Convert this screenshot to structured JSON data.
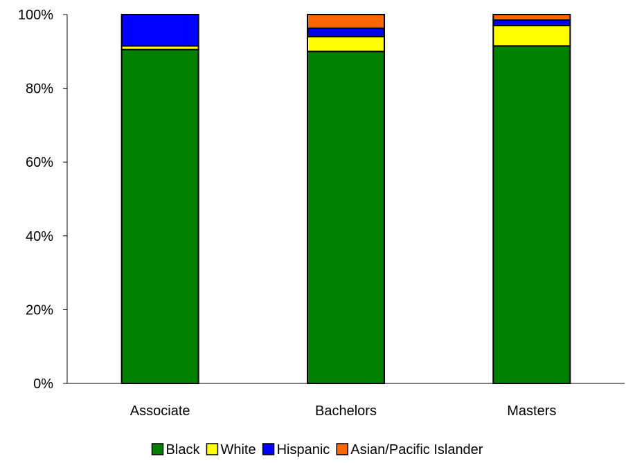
{
  "chart_data": {
    "type": "bar",
    "stacked": true,
    "percent_stacked": true,
    "categories": [
      "Associate",
      "Bachelors",
      "Masters"
    ],
    "series": [
      {
        "name": "Black",
        "color": "#008000",
        "values": [
          90.5,
          90.0,
          91.5
        ]
      },
      {
        "name": "White",
        "color": "#ffff00",
        "values": [
          1.0,
          4.0,
          5.5
        ]
      },
      {
        "name": "Hispanic",
        "color": "#0000ff",
        "values": [
          8.5,
          2.3,
          1.5
        ]
      },
      {
        "name": "Asian/Pacific Islander",
        "color": "#ff6600",
        "values": [
          0.0,
          3.7,
          1.5
        ]
      }
    ],
    "ylim": [
      0,
      100
    ],
    "yticks": [
      "0%",
      "20%",
      "40%",
      "60%",
      "80%",
      "100%"
    ],
    "legend_position": "bottom",
    "grid": false
  }
}
